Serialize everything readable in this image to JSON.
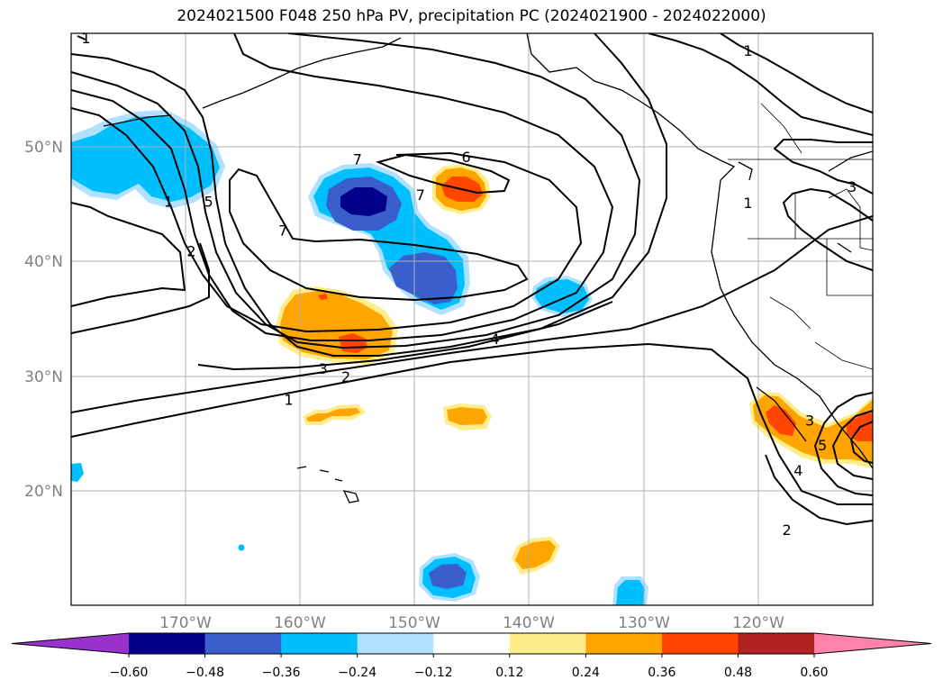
{
  "chart_data": {
    "type": "contour-map",
    "title": "2024021500 F048 250 hPa PV, precipitation PC (2024021900 - 2024022000)",
    "region": "North Pacific and western North America",
    "xlim": [
      -180,
      -110
    ],
    "ylim": [
      10,
      60
    ],
    "x_ticks": [
      -170,
      -160,
      -150,
      -140,
      -130,
      -120
    ],
    "x_tick_labels": [
      "170°W",
      "160°W",
      "150°W",
      "140°W",
      "130°W",
      "120°W"
    ],
    "y_ticks": [
      20,
      30,
      40,
      50
    ],
    "y_tick_labels": [
      "20°N",
      "30°N",
      "40°N",
      "50°N"
    ],
    "grid": true,
    "colorbar": {
      "orientation": "horizontal",
      "extend": "both",
      "bounds": [
        -0.6,
        -0.48,
        -0.36,
        -0.24,
        -0.12,
        0.12,
        0.24,
        0.36,
        0.48,
        0.6
      ],
      "tick_labels": [
        "−0.60",
        "−0.48",
        "−0.36",
        "−0.24",
        "−0.12",
        "0.12",
        "0.24",
        "0.36",
        "0.48",
        "0.60"
      ],
      "colors": [
        "#9932cc",
        "#00008b",
        "#3a5fcd",
        "#00bfff",
        "#b0e2ff",
        "#ffffff",
        "#ffec8b",
        "#ffa500",
        "#ff4500",
        "#b22222",
        "#ff82ab"
      ]
    },
    "pv_contours": {
      "levels": [
        1,
        2,
        3,
        4,
        5,
        6,
        7
      ],
      "labels": [
        {
          "text": "1",
          "lon": -161,
          "lat": 28.0
        },
        {
          "text": "2",
          "lon": -156,
          "lat": 30.0
        },
        {
          "text": "3",
          "lon": -158,
          "lat": 30.7
        },
        {
          "text": "4",
          "lon": -143,
          "lat": 33.3
        },
        {
          "text": "6",
          "lon": -145.5,
          "lat": 49.2
        },
        {
          "text": "7",
          "lon": -155,
          "lat": 49.0
        },
        {
          "text": "7",
          "lon": -149.5,
          "lat": 45.9
        },
        {
          "text": "7",
          "lon": -161.5,
          "lat": 42.8
        },
        {
          "text": "5",
          "lon": -168,
          "lat": 45.3
        },
        {
          "text": "2",
          "lon": -169.5,
          "lat": 41.0
        },
        {
          "text": "1",
          "lon": -171.5,
          "lat": 45.3
        },
        {
          "text": "1",
          "lon": -120.9,
          "lat": 58.5
        },
        {
          "text": "1",
          "lon": -120.9,
          "lat": 45.2
        },
        {
          "text": "1",
          "lon": -178.7,
          "lat": 59.6
        },
        {
          "text": "3",
          "lon": -111.8,
          "lat": 46.6
        },
        {
          "text": "3",
          "lon": -115.5,
          "lat": 26.2
        },
        {
          "text": "5",
          "lon": -114.4,
          "lat": 24.0
        },
        {
          "text": "4",
          "lon": -116.5,
          "lat": 21.8
        },
        {
          "text": "2",
          "lon": -117.5,
          "lat": 16.6
        }
      ]
    },
    "precip_pc_regions": [
      {
        "category": "-0.24 to -0.12",
        "lon": -173.5,
        "lat": 48.5
      },
      {
        "category": "-0.36 to -0.24",
        "lon": -172.5,
        "lat": 49.0
      },
      {
        "category": "-0.36 to -0.24",
        "lon": -152.0,
        "lat": 42.0
      },
      {
        "category": "-0.48 to -0.36",
        "lon": -154.5,
        "lat": 44.5
      },
      {
        "category": "-0.60 to -0.48",
        "lon": -154.5,
        "lat": 45.0
      },
      {
        "category": "-0.48 to -0.36",
        "lon": -148.0,
        "lat": 38.5
      },
      {
        "category": "-0.36 to -0.24",
        "lon": -137.5,
        "lat": 37.0
      },
      {
        "category": "-0.36 to -0.24",
        "lon": -179.5,
        "lat": 21.8
      },
      {
        "category": "-0.48 to -0.36",
        "lon": -148.0,
        "lat": 12.5
      },
      {
        "category": "-0.36 to -0.24",
        "lon": -131.0,
        "lat": 11.0
      },
      {
        "category": "0.24 to 0.36",
        "lon": -156.5,
        "lat": 34.0
      },
      {
        "category": "0.36 to 0.48",
        "lon": -155.5,
        "lat": 32.8
      },
      {
        "category": "0.24 to 0.36",
        "lon": -146.5,
        "lat": 46.0
      },
      {
        "category": "0.36 to 0.48",
        "lon": -146.0,
        "lat": 45.5
      },
      {
        "category": "0.24 to 0.36",
        "lon": -146.0,
        "lat": 26.8
      },
      {
        "category": "0.24 to 0.36",
        "lon": -157.0,
        "lat": 26.5
      },
      {
        "category": "0.24 to 0.36",
        "lon": -140.0,
        "lat": 15.0
      },
      {
        "category": "0.24 to 0.36",
        "lon": -115.0,
        "lat": 25.0
      },
      {
        "category": "0.36 to 0.48",
        "lon": -117.5,
        "lat": 26.3
      }
    ]
  }
}
